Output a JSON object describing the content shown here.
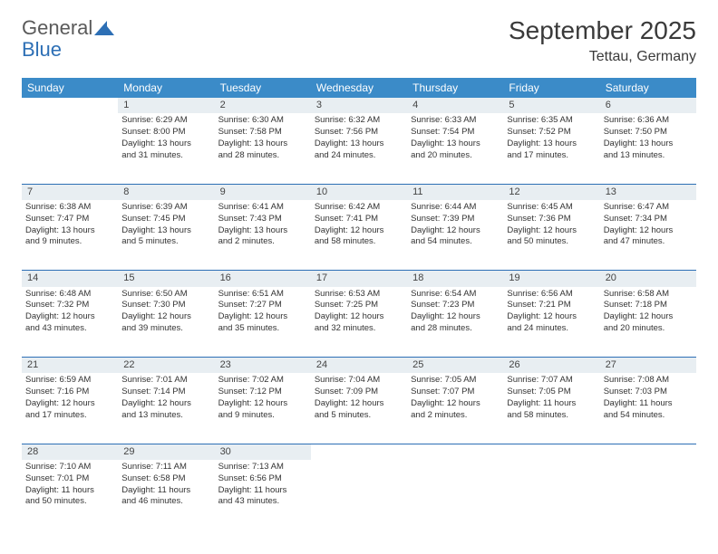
{
  "logo": {
    "part1": "General",
    "part2": "Blue"
  },
  "title": "September 2025",
  "location": "Tettau, Germany",
  "header_bg": "#3b8bc8",
  "daynum_bg": "#e8eef2",
  "border_color": "#2d6fb5",
  "days": [
    "Sunday",
    "Monday",
    "Tuesday",
    "Wednesday",
    "Thursday",
    "Friday",
    "Saturday"
  ],
  "weeks": [
    [
      {
        "n": "",
        "l": [
          "",
          "",
          "",
          ""
        ]
      },
      {
        "n": "1",
        "l": [
          "Sunrise: 6:29 AM",
          "Sunset: 8:00 PM",
          "Daylight: 13 hours",
          "and 31 minutes."
        ]
      },
      {
        "n": "2",
        "l": [
          "Sunrise: 6:30 AM",
          "Sunset: 7:58 PM",
          "Daylight: 13 hours",
          "and 28 minutes."
        ]
      },
      {
        "n": "3",
        "l": [
          "Sunrise: 6:32 AM",
          "Sunset: 7:56 PM",
          "Daylight: 13 hours",
          "and 24 minutes."
        ]
      },
      {
        "n": "4",
        "l": [
          "Sunrise: 6:33 AM",
          "Sunset: 7:54 PM",
          "Daylight: 13 hours",
          "and 20 minutes."
        ]
      },
      {
        "n": "5",
        "l": [
          "Sunrise: 6:35 AM",
          "Sunset: 7:52 PM",
          "Daylight: 13 hours",
          "and 17 minutes."
        ]
      },
      {
        "n": "6",
        "l": [
          "Sunrise: 6:36 AM",
          "Sunset: 7:50 PM",
          "Daylight: 13 hours",
          "and 13 minutes."
        ]
      }
    ],
    [
      {
        "n": "7",
        "l": [
          "Sunrise: 6:38 AM",
          "Sunset: 7:47 PM",
          "Daylight: 13 hours",
          "and 9 minutes."
        ]
      },
      {
        "n": "8",
        "l": [
          "Sunrise: 6:39 AM",
          "Sunset: 7:45 PM",
          "Daylight: 13 hours",
          "and 5 minutes."
        ]
      },
      {
        "n": "9",
        "l": [
          "Sunrise: 6:41 AM",
          "Sunset: 7:43 PM",
          "Daylight: 13 hours",
          "and 2 minutes."
        ]
      },
      {
        "n": "10",
        "l": [
          "Sunrise: 6:42 AM",
          "Sunset: 7:41 PM",
          "Daylight: 12 hours",
          "and 58 minutes."
        ]
      },
      {
        "n": "11",
        "l": [
          "Sunrise: 6:44 AM",
          "Sunset: 7:39 PM",
          "Daylight: 12 hours",
          "and 54 minutes."
        ]
      },
      {
        "n": "12",
        "l": [
          "Sunrise: 6:45 AM",
          "Sunset: 7:36 PM",
          "Daylight: 12 hours",
          "and 50 minutes."
        ]
      },
      {
        "n": "13",
        "l": [
          "Sunrise: 6:47 AM",
          "Sunset: 7:34 PM",
          "Daylight: 12 hours",
          "and 47 minutes."
        ]
      }
    ],
    [
      {
        "n": "14",
        "l": [
          "Sunrise: 6:48 AM",
          "Sunset: 7:32 PM",
          "Daylight: 12 hours",
          "and 43 minutes."
        ]
      },
      {
        "n": "15",
        "l": [
          "Sunrise: 6:50 AM",
          "Sunset: 7:30 PM",
          "Daylight: 12 hours",
          "and 39 minutes."
        ]
      },
      {
        "n": "16",
        "l": [
          "Sunrise: 6:51 AM",
          "Sunset: 7:27 PM",
          "Daylight: 12 hours",
          "and 35 minutes."
        ]
      },
      {
        "n": "17",
        "l": [
          "Sunrise: 6:53 AM",
          "Sunset: 7:25 PM",
          "Daylight: 12 hours",
          "and 32 minutes."
        ]
      },
      {
        "n": "18",
        "l": [
          "Sunrise: 6:54 AM",
          "Sunset: 7:23 PM",
          "Daylight: 12 hours",
          "and 28 minutes."
        ]
      },
      {
        "n": "19",
        "l": [
          "Sunrise: 6:56 AM",
          "Sunset: 7:21 PM",
          "Daylight: 12 hours",
          "and 24 minutes."
        ]
      },
      {
        "n": "20",
        "l": [
          "Sunrise: 6:58 AM",
          "Sunset: 7:18 PM",
          "Daylight: 12 hours",
          "and 20 minutes."
        ]
      }
    ],
    [
      {
        "n": "21",
        "l": [
          "Sunrise: 6:59 AM",
          "Sunset: 7:16 PM",
          "Daylight: 12 hours",
          "and 17 minutes."
        ]
      },
      {
        "n": "22",
        "l": [
          "Sunrise: 7:01 AM",
          "Sunset: 7:14 PM",
          "Daylight: 12 hours",
          "and 13 minutes."
        ]
      },
      {
        "n": "23",
        "l": [
          "Sunrise: 7:02 AM",
          "Sunset: 7:12 PM",
          "Daylight: 12 hours",
          "and 9 minutes."
        ]
      },
      {
        "n": "24",
        "l": [
          "Sunrise: 7:04 AM",
          "Sunset: 7:09 PM",
          "Daylight: 12 hours",
          "and 5 minutes."
        ]
      },
      {
        "n": "25",
        "l": [
          "Sunrise: 7:05 AM",
          "Sunset: 7:07 PM",
          "Daylight: 12 hours",
          "and 2 minutes."
        ]
      },
      {
        "n": "26",
        "l": [
          "Sunrise: 7:07 AM",
          "Sunset: 7:05 PM",
          "Daylight: 11 hours",
          "and 58 minutes."
        ]
      },
      {
        "n": "27",
        "l": [
          "Sunrise: 7:08 AM",
          "Sunset: 7:03 PM",
          "Daylight: 11 hours",
          "and 54 minutes."
        ]
      }
    ],
    [
      {
        "n": "28",
        "l": [
          "Sunrise: 7:10 AM",
          "Sunset: 7:01 PM",
          "Daylight: 11 hours",
          "and 50 minutes."
        ]
      },
      {
        "n": "29",
        "l": [
          "Sunrise: 7:11 AM",
          "Sunset: 6:58 PM",
          "Daylight: 11 hours",
          "and 46 minutes."
        ]
      },
      {
        "n": "30",
        "l": [
          "Sunrise: 7:13 AM",
          "Sunset: 6:56 PM",
          "Daylight: 11 hours",
          "and 43 minutes."
        ]
      },
      {
        "n": "",
        "l": [
          "",
          "",
          "",
          ""
        ]
      },
      {
        "n": "",
        "l": [
          "",
          "",
          "",
          ""
        ]
      },
      {
        "n": "",
        "l": [
          "",
          "",
          "",
          ""
        ]
      },
      {
        "n": "",
        "l": [
          "",
          "",
          "",
          ""
        ]
      }
    ]
  ]
}
